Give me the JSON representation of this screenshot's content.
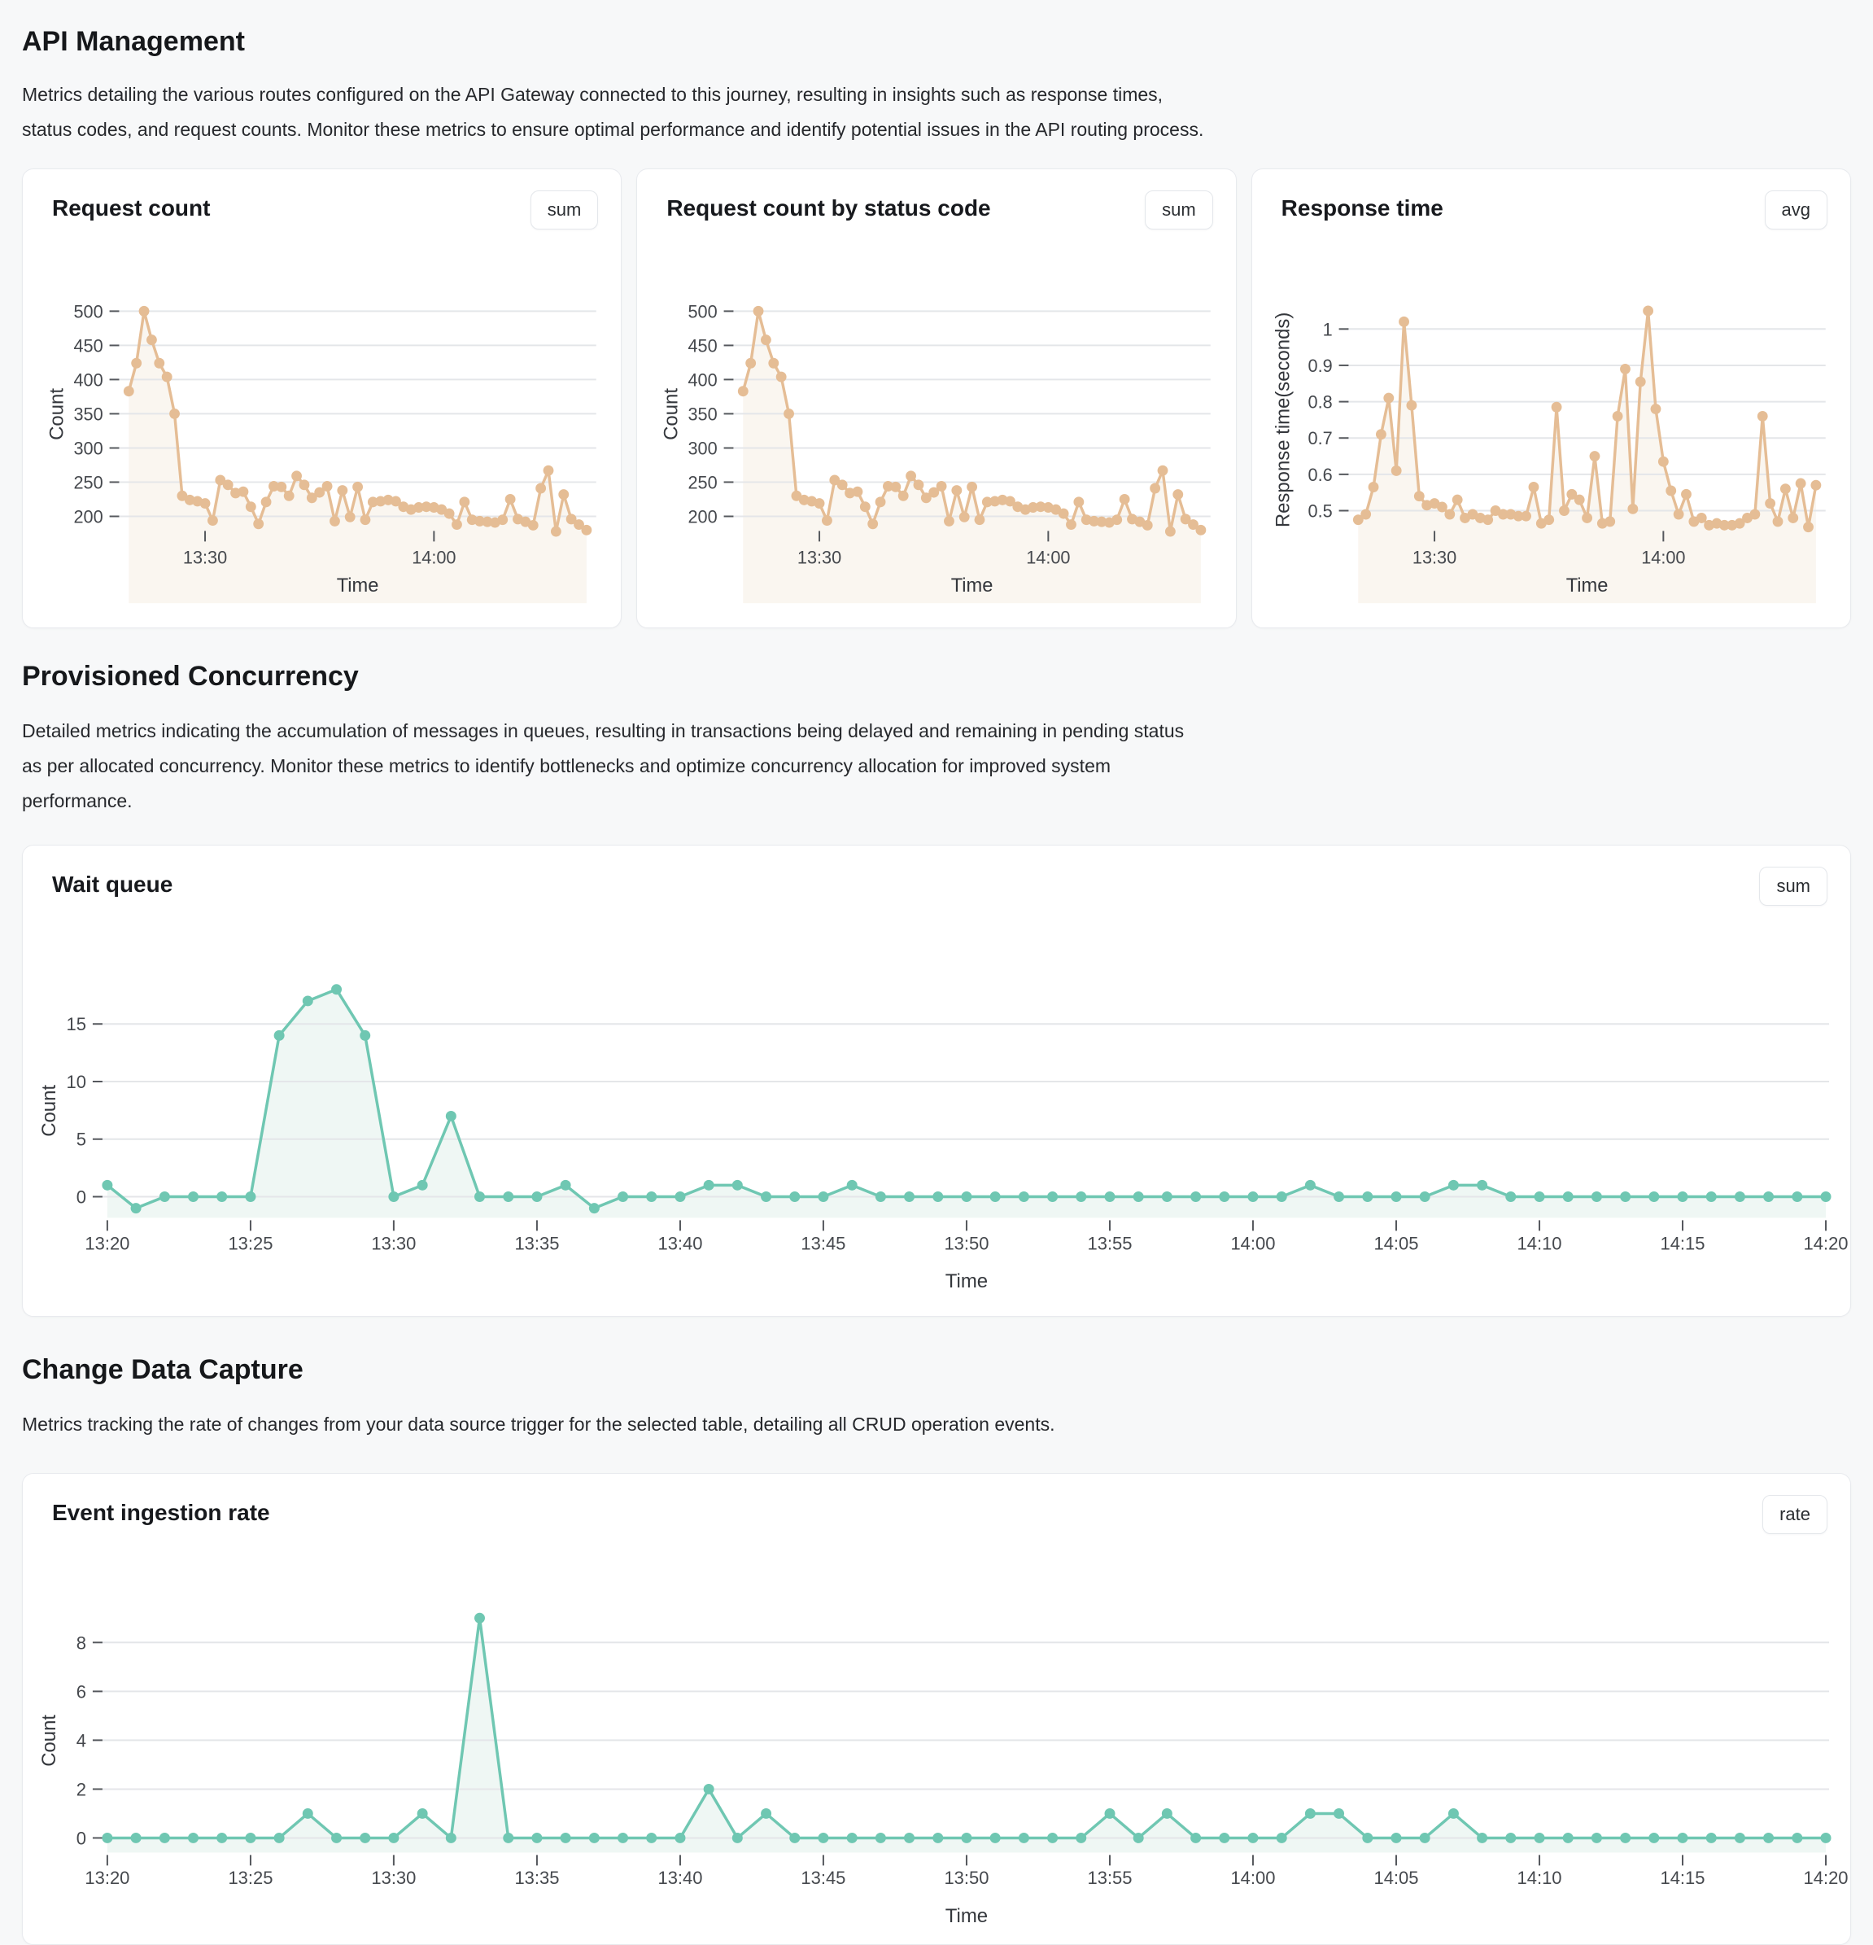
{
  "page": {
    "sections": [
      {
        "title": "API Management",
        "description": "Metrics detailing the various routes configured on the API Gateway connected to this journey, resulting in insights such as response times,\nstatus codes, and request counts. Monitor these metrics to ensure optimal performance and identify potential issues in the API routing process."
      },
      {
        "title": "Provisioned Concurrency",
        "description": "Detailed metrics indicating the accumulation of messages in queues, resulting in transactions being delayed and remaining in pending status\nas per allocated concurrency. Monitor these metrics to identify bottlenecks and optimize concurrency allocation for improved system\nperformance."
      },
      {
        "title": "Change Data Capture",
        "description": "Metrics tracking the rate of changes from your data source trigger for the selected table, detailing all CRUD operation events."
      }
    ]
  },
  "chart_data": {
    "x_times": [
      "13:20",
      "13:21",
      "13:22",
      "13:23",
      "13:24",
      "13:25",
      "13:26",
      "13:27",
      "13:28",
      "13:29",
      "13:30",
      "13:31",
      "13:32",
      "13:33",
      "13:34",
      "13:35",
      "13:36",
      "13:37",
      "13:38",
      "13:39",
      "13:40",
      "13:41",
      "13:42",
      "13:43",
      "13:44",
      "13:45",
      "13:46",
      "13:47",
      "13:48",
      "13:49",
      "13:50",
      "13:51",
      "13:52",
      "13:53",
      "13:54",
      "13:55",
      "13:56",
      "13:57",
      "13:58",
      "13:59",
      "14:00",
      "14:01",
      "14:02",
      "14:03",
      "14:04",
      "14:05",
      "14:06",
      "14:07",
      "14:08",
      "14:09",
      "14:10",
      "14:11",
      "14:12",
      "14:13",
      "14:14",
      "14:15",
      "14:16",
      "14:17",
      "14:18",
      "14:19",
      "14:20"
    ],
    "charts": [
      {
        "id": "request-count",
        "type": "line",
        "title": "Request count",
        "aggregation": "sum",
        "xlabel": "Time",
        "ylabel": "Count",
        "ylim": [
          170,
          515
        ],
        "yticks": [
          500,
          450,
          400,
          350,
          300,
          250,
          200
        ],
        "xticks": [
          {
            "index": 10,
            "label": "13:30"
          },
          {
            "index": 40,
            "label": "14:00"
          }
        ],
        "color": "#e5bd95",
        "fill_color": "#faf6f0",
        "values": [
          383,
          424,
          500,
          458,
          424,
          404,
          350,
          230,
          224,
          222,
          219,
          194,
          253,
          246,
          234,
          236,
          214,
          189,
          221,
          244,
          243,
          230,
          259,
          246,
          227,
          235,
          244,
          193,
          238,
          199,
          243,
          195,
          221,
          222,
          224,
          222,
          214,
          210,
          213,
          214,
          213,
          210,
          204,
          188,
          221,
          195,
          193,
          192,
          191,
          195,
          225,
          196,
          192,
          187,
          241,
          267,
          178,
          232,
          196,
          188,
          180
        ]
      },
      {
        "id": "request-count-by-status-code",
        "type": "line",
        "title": "Request count by status code",
        "aggregation": "sum",
        "xlabel": "Time",
        "ylabel": "Count",
        "ylim": [
          170,
          515
        ],
        "yticks": [
          500,
          450,
          400,
          350,
          300,
          250,
          200
        ],
        "xticks": [
          {
            "index": 10,
            "label": "13:30"
          },
          {
            "index": 40,
            "label": "14:00"
          }
        ],
        "color": "#e5bd95",
        "fill_color": "#faf6f0",
        "values": [
          383,
          424,
          500,
          458,
          424,
          404,
          350,
          230,
          224,
          222,
          219,
          194,
          253,
          246,
          234,
          236,
          214,
          189,
          221,
          244,
          243,
          230,
          259,
          246,
          227,
          235,
          244,
          193,
          238,
          199,
          243,
          195,
          221,
          222,
          224,
          222,
          214,
          210,
          213,
          214,
          213,
          210,
          204,
          188,
          221,
          195,
          193,
          192,
          191,
          195,
          225,
          196,
          192,
          187,
          241,
          267,
          178,
          232,
          196,
          188,
          180
        ]
      },
      {
        "id": "response-time",
        "type": "line",
        "title": "Response time",
        "aggregation": "avg",
        "xlabel": "Time",
        "ylabel": "Response time(seconds)",
        "ylim": [
          0.43,
          1.07
        ],
        "yticks": [
          1,
          0.9,
          0.8,
          0.7,
          0.6,
          0.5
        ],
        "xticks": [
          {
            "index": 10,
            "label": "13:30"
          },
          {
            "index": 40,
            "label": "14:00"
          }
        ],
        "color": "#e5bd95",
        "fill_color": "#faf6f0",
        "values": [
          0.475,
          0.49,
          0.565,
          0.71,
          0.81,
          0.61,
          1.02,
          0.79,
          0.54,
          0.515,
          0.52,
          0.51,
          0.49,
          0.53,
          0.48,
          0.49,
          0.48,
          0.475,
          0.5,
          0.49,
          0.49,
          0.485,
          0.485,
          0.565,
          0.465,
          0.475,
          0.785,
          0.5,
          0.545,
          0.53,
          0.48,
          0.65,
          0.465,
          0.47,
          0.76,
          0.89,
          0.505,
          0.855,
          1.05,
          0.78,
          0.635,
          0.555,
          0.49,
          0.545,
          0.47,
          0.48,
          0.46,
          0.465,
          0.46,
          0.46,
          0.465,
          0.48,
          0.49,
          0.76,
          0.52,
          0.47,
          0.56,
          0.48,
          0.575,
          0.455,
          0.57
        ]
      },
      {
        "id": "wait-queue",
        "type": "line",
        "title": "Wait queue",
        "aggregation": "sum",
        "xlabel": "Time",
        "ylabel": "Count",
        "ylim": [
          -2,
          19
        ],
        "yticks": [
          15,
          10,
          5,
          0
        ],
        "xticks": [
          {
            "index": 0,
            "label": "13:20"
          },
          {
            "index": 5,
            "label": "13:25"
          },
          {
            "index": 10,
            "label": "13:30"
          },
          {
            "index": 15,
            "label": "13:35"
          },
          {
            "index": 20,
            "label": "13:40"
          },
          {
            "index": 25,
            "label": "13:45"
          },
          {
            "index": 30,
            "label": "13:50"
          },
          {
            "index": 35,
            "label": "13:55"
          },
          {
            "index": 40,
            "label": "14:00"
          },
          {
            "index": 45,
            "label": "14:05"
          },
          {
            "index": 50,
            "label": "14:10"
          },
          {
            "index": 55,
            "label": "14:15"
          },
          {
            "index": 60,
            "label": "14:20"
          }
        ],
        "color": "#6fc7b2",
        "fill_color": "#eff7f4",
        "values": [
          1,
          -1,
          0,
          0,
          0,
          0,
          14,
          17,
          18,
          14,
          0,
          1,
          7,
          0,
          0,
          0,
          1,
          -1,
          0,
          0,
          0,
          1,
          1,
          0,
          0,
          0,
          1,
          0,
          0,
          0,
          0,
          0,
          0,
          0,
          0,
          0,
          0,
          0,
          0,
          0,
          0,
          0,
          1,
          0,
          0,
          0,
          0,
          1,
          1,
          0,
          0,
          0,
          0,
          0,
          0,
          0,
          0,
          0,
          0,
          0,
          0
        ]
      },
      {
        "id": "event-ingestion-rate",
        "type": "line",
        "title": "Event ingestion rate",
        "aggregation": "rate",
        "xlabel": "Time",
        "ylabel": "Count",
        "ylim": [
          -0.5,
          9.5
        ],
        "yticks": [
          8,
          6,
          4,
          2,
          0
        ],
        "xticks": [
          {
            "index": 0,
            "label": "13:20"
          },
          {
            "index": 5,
            "label": "13:25"
          },
          {
            "index": 10,
            "label": "13:30"
          },
          {
            "index": 15,
            "label": "13:35"
          },
          {
            "index": 20,
            "label": "13:40"
          },
          {
            "index": 25,
            "label": "13:45"
          },
          {
            "index": 30,
            "label": "13:50"
          },
          {
            "index": 35,
            "label": "13:55"
          },
          {
            "index": 40,
            "label": "14:00"
          },
          {
            "index": 45,
            "label": "14:05"
          },
          {
            "index": 50,
            "label": "14:10"
          },
          {
            "index": 55,
            "label": "14:15"
          },
          {
            "index": 60,
            "label": "14:20"
          }
        ],
        "color": "#6fc7b2",
        "fill_color": "#eff7f4",
        "values": [
          0,
          0,
          0,
          0,
          0,
          0,
          0,
          1,
          0,
          0,
          0,
          1,
          0,
          9,
          0,
          0,
          0,
          0,
          0,
          0,
          0,
          2,
          0,
          1,
          0,
          0,
          0,
          0,
          0,
          0,
          0,
          0,
          0,
          0,
          0,
          1,
          0,
          1,
          0,
          0,
          0,
          0,
          1,
          1,
          0,
          0,
          0,
          1,
          0,
          0,
          0,
          0,
          0,
          0,
          0,
          0,
          0,
          0,
          0,
          0,
          0
        ]
      }
    ]
  }
}
